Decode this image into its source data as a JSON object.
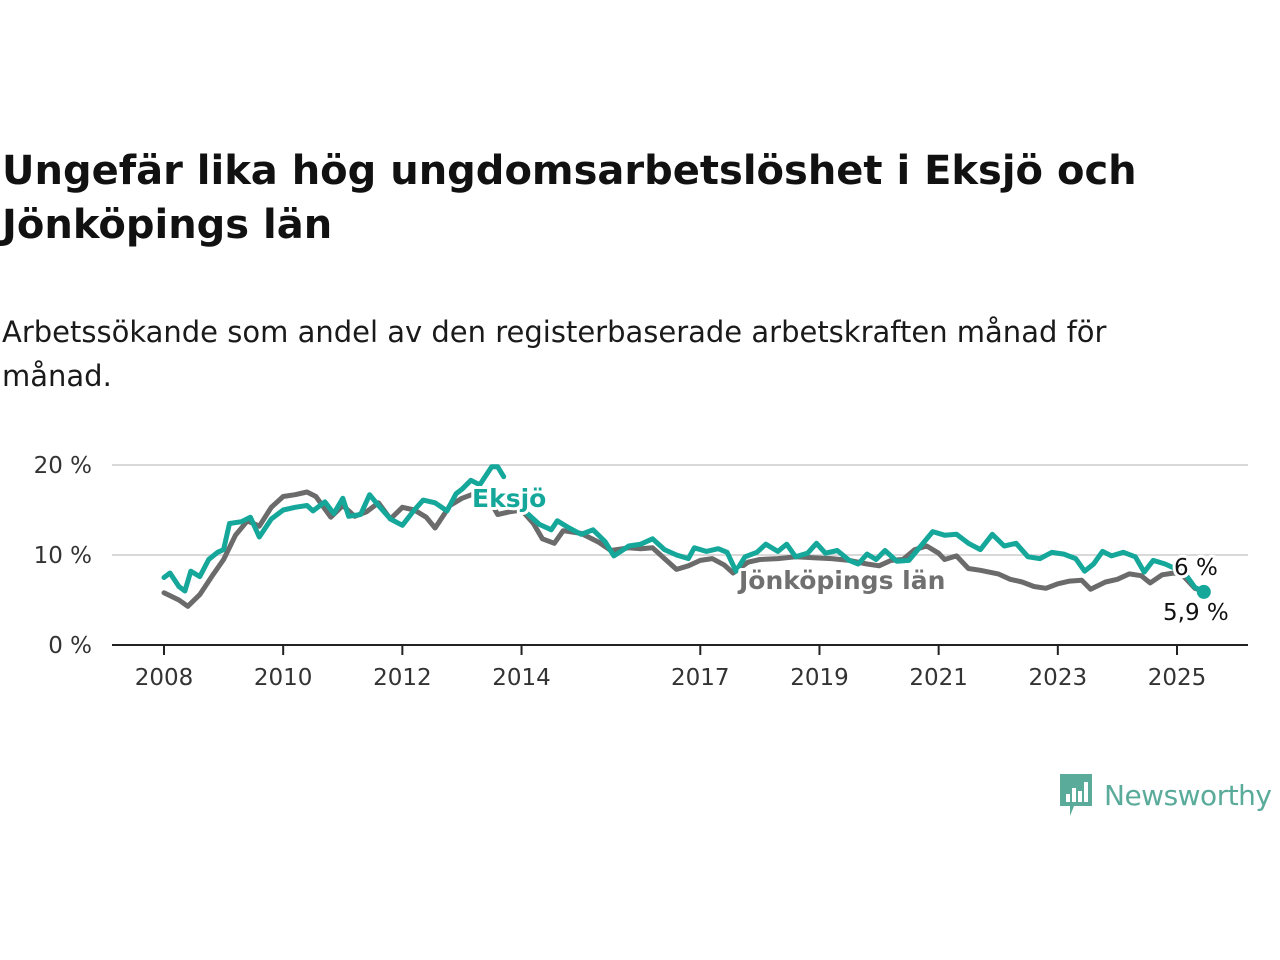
{
  "header": {
    "title": "Ungefär lika hög ungdomsarbetslöshet i Eksjö och Jönköpings län",
    "subtitle": "Arbetssökande som andel av den registerbaserade arbetskraften månad för månad."
  },
  "brand": {
    "name": "Newsworthy",
    "icon": "newsworthy-chart-bubble-icon",
    "color": "#5aab9a"
  },
  "chart_data": {
    "type": "line",
    "title": "Ungefär lika hög ungdomsarbetslöshet i Eksjö och Jönköpings län",
    "subtitle": "Arbetssökande som andel av den registerbaserade arbetskraften månad för månad.",
    "xlabel": "",
    "ylabel": "",
    "xlim": [
      2008,
      2026.2
    ],
    "ylim": [
      0,
      20
    ],
    "x_ticks": [
      {
        "value": 2008,
        "label": "2008"
      },
      {
        "value": 2010,
        "label": "2010"
      },
      {
        "value": 2012,
        "label": "2012"
      },
      {
        "value": 2014,
        "label": "2014"
      },
      {
        "value": 2017,
        "label": "2017"
      },
      {
        "value": 2019,
        "label": "2019"
      },
      {
        "value": 2021,
        "label": "2021"
      },
      {
        "value": 2023,
        "label": "2023"
      },
      {
        "value": 2025,
        "label": "2025"
      }
    ],
    "y_ticks": [
      {
        "value": 0,
        "label": "0 %"
      },
      {
        "value": 10,
        "label": "10 %"
      },
      {
        "value": 20,
        "label": "20 %"
      }
    ],
    "grid": true,
    "legend": "direct labels",
    "series": [
      {
        "name": "Jönköpings län",
        "color": "#6b6b6b",
        "end_label": "6 %",
        "points": [
          [
            2008.0,
            5.8
          ],
          [
            2008.25,
            5.0
          ],
          [
            2008.4,
            4.3
          ],
          [
            2008.6,
            5.6
          ],
          [
            2008.8,
            7.6
          ],
          [
            2009.0,
            9.5
          ],
          [
            2009.2,
            12.2
          ],
          [
            2009.4,
            13.8
          ],
          [
            2009.6,
            13.2
          ],
          [
            2009.8,
            15.3
          ],
          [
            2010.0,
            16.5
          ],
          [
            2010.2,
            16.7
          ],
          [
            2010.4,
            17.0
          ],
          [
            2010.55,
            16.5
          ],
          [
            2010.8,
            14.2
          ],
          [
            2011.0,
            15.5
          ],
          [
            2011.2,
            14.3
          ],
          [
            2011.4,
            14.8
          ],
          [
            2011.6,
            15.8
          ],
          [
            2011.8,
            14.0
          ],
          [
            2012.0,
            15.3
          ],
          [
            2012.2,
            15.0
          ],
          [
            2012.4,
            14.2
          ],
          [
            2012.55,
            13.0
          ],
          [
            2012.8,
            15.5
          ],
          [
            2013.0,
            16.3
          ],
          [
            2013.2,
            16.8
          ],
          [
            2013.4,
            16.8
          ],
          [
            2013.6,
            14.5
          ],
          [
            2013.8,
            14.8
          ],
          [
            2014.0,
            15.0
          ],
          [
            2014.2,
            13.5
          ],
          [
            2014.35,
            11.8
          ],
          [
            2014.55,
            11.3
          ],
          [
            2014.7,
            12.7
          ],
          [
            2015.0,
            12.4
          ],
          [
            2015.3,
            11.4
          ],
          [
            2015.5,
            10.5
          ],
          [
            2015.8,
            10.8
          ],
          [
            2016.0,
            10.7
          ],
          [
            2016.2,
            10.8
          ],
          [
            2016.4,
            9.6
          ],
          [
            2016.6,
            8.4
          ],
          [
            2016.8,
            8.8
          ],
          [
            2017.0,
            9.4
          ],
          [
            2017.2,
            9.6
          ],
          [
            2017.4,
            8.9
          ],
          [
            2017.55,
            8.0
          ],
          [
            2017.8,
            9.2
          ],
          [
            2018.0,
            9.5
          ],
          [
            2018.3,
            9.6
          ],
          [
            2018.6,
            9.8
          ],
          [
            2018.9,
            9.7
          ],
          [
            2019.2,
            9.6
          ],
          [
            2019.5,
            9.4
          ],
          [
            2019.8,
            9.0
          ],
          [
            2020.0,
            8.8
          ],
          [
            2020.2,
            9.4
          ],
          [
            2020.4,
            9.5
          ],
          [
            2020.6,
            10.6
          ],
          [
            2020.8,
            11.0
          ],
          [
            2021.0,
            10.2
          ],
          [
            2021.1,
            9.5
          ],
          [
            2021.3,
            9.9
          ],
          [
            2021.5,
            8.5
          ],
          [
            2021.7,
            8.3
          ],
          [
            2022.0,
            7.9
          ],
          [
            2022.2,
            7.3
          ],
          [
            2022.4,
            7.0
          ],
          [
            2022.6,
            6.5
          ],
          [
            2022.8,
            6.3
          ],
          [
            2023.0,
            6.8
          ],
          [
            2023.2,
            7.1
          ],
          [
            2023.4,
            7.2
          ],
          [
            2023.55,
            6.2
          ],
          [
            2023.8,
            7.0
          ],
          [
            2024.0,
            7.3
          ],
          [
            2024.2,
            7.9
          ],
          [
            2024.4,
            7.7
          ],
          [
            2024.55,
            6.9
          ],
          [
            2024.75,
            7.8
          ],
          [
            2024.95,
            8.0
          ],
          [
            2025.1,
            7.7
          ],
          [
            2025.3,
            6.3
          ],
          [
            2025.45,
            6.0
          ]
        ]
      },
      {
        "name": "Eksjö",
        "color": "#14a79a",
        "end_label": "5,9 %",
        "points": [
          [
            2008.0,
            7.5
          ],
          [
            2008.1,
            8.0
          ],
          [
            2008.25,
            6.5
          ],
          [
            2008.35,
            6.0
          ],
          [
            2008.45,
            8.2
          ],
          [
            2008.6,
            7.6
          ],
          [
            2008.75,
            9.5
          ],
          [
            2008.9,
            10.3
          ],
          [
            2009.0,
            10.6
          ],
          [
            2009.1,
            13.5
          ],
          [
            2009.3,
            13.7
          ],
          [
            2009.45,
            14.2
          ],
          [
            2009.6,
            12.0
          ],
          [
            2009.8,
            14.0
          ],
          [
            2010.0,
            15.0
          ],
          [
            2010.2,
            15.3
          ],
          [
            2010.4,
            15.5
          ],
          [
            2010.5,
            14.9
          ],
          [
            2010.7,
            15.9
          ],
          [
            2010.85,
            14.6
          ],
          [
            2011.0,
            16.3
          ],
          [
            2011.1,
            14.3
          ],
          [
            2011.3,
            14.5
          ],
          [
            2011.45,
            16.7
          ],
          [
            2011.6,
            15.5
          ],
          [
            2011.8,
            14.0
          ],
          [
            2012.0,
            13.3
          ],
          [
            2012.2,
            15.0
          ],
          [
            2012.35,
            16.1
          ],
          [
            2012.55,
            15.8
          ],
          [
            2012.75,
            14.9
          ],
          [
            2012.9,
            16.8
          ],
          [
            2013.0,
            17.3
          ],
          [
            2013.15,
            18.3
          ],
          [
            2013.3,
            17.8
          ],
          [
            2013.5,
            19.8
          ],
          [
            2013.6,
            19.8
          ],
          [
            2013.7,
            18.7
          ]
        ],
        "points_2": [
          [
            2014.1,
            14.6
          ],
          [
            2014.3,
            13.4
          ],
          [
            2014.5,
            12.8
          ],
          [
            2014.6,
            13.8
          ],
          [
            2014.8,
            13.0
          ],
          [
            2015.0,
            12.3
          ],
          [
            2015.2,
            12.8
          ],
          [
            2015.4,
            11.5
          ],
          [
            2015.55,
            9.9
          ],
          [
            2015.8,
            11.0
          ],
          [
            2016.0,
            11.2
          ],
          [
            2016.2,
            11.8
          ],
          [
            2016.4,
            10.6
          ],
          [
            2016.6,
            10.0
          ],
          [
            2016.8,
            9.6
          ],
          [
            2016.9,
            10.8
          ],
          [
            2017.1,
            10.4
          ],
          [
            2017.3,
            10.7
          ],
          [
            2017.45,
            10.3
          ],
          [
            2017.6,
            8.2
          ],
          [
            2017.75,
            9.8
          ],
          [
            2017.95,
            10.3
          ],
          [
            2018.1,
            11.2
          ],
          [
            2018.3,
            10.4
          ],
          [
            2018.45,
            11.2
          ],
          [
            2018.6,
            9.8
          ],
          [
            2018.8,
            10.2
          ],
          [
            2018.95,
            11.3
          ],
          [
            2019.1,
            10.2
          ],
          [
            2019.3,
            10.5
          ],
          [
            2019.5,
            9.4
          ],
          [
            2019.65,
            9.0
          ],
          [
            2019.8,
            10.1
          ],
          [
            2019.95,
            9.5
          ],
          [
            2020.1,
            10.5
          ],
          [
            2020.3,
            9.3
          ],
          [
            2020.5,
            9.4
          ],
          [
            2020.7,
            11.0
          ],
          [
            2020.9,
            12.6
          ],
          [
            2021.1,
            12.2
          ],
          [
            2021.3,
            12.3
          ],
          [
            2021.5,
            11.3
          ],
          [
            2021.7,
            10.6
          ],
          [
            2021.9,
            12.3
          ],
          [
            2022.1,
            11.0
          ],
          [
            2022.3,
            11.3
          ],
          [
            2022.5,
            9.8
          ],
          [
            2022.7,
            9.6
          ],
          [
            2022.9,
            10.3
          ],
          [
            2023.1,
            10.1
          ],
          [
            2023.3,
            9.6
          ],
          [
            2023.45,
            8.2
          ],
          [
            2023.6,
            9.0
          ],
          [
            2023.75,
            10.4
          ],
          [
            2023.9,
            9.9
          ],
          [
            2024.1,
            10.3
          ],
          [
            2024.3,
            9.8
          ],
          [
            2024.45,
            8.1
          ],
          [
            2024.6,
            9.4
          ],
          [
            2024.8,
            9.0
          ],
          [
            2025.0,
            8.4
          ],
          [
            2025.15,
            7.8
          ],
          [
            2025.3,
            6.4
          ],
          [
            2025.45,
            5.9
          ]
        ]
      }
    ],
    "annotations": [
      {
        "text": "Eksjö",
        "series": "Eksjö"
      },
      {
        "text": "Jönköpings län",
        "series": "Jönköpings län"
      },
      {
        "text": "6 %",
        "series": "Jönköpings län",
        "at": "end"
      },
      {
        "text": "5,9 %",
        "series": "Eksjö",
        "at": "end"
      }
    ]
  }
}
